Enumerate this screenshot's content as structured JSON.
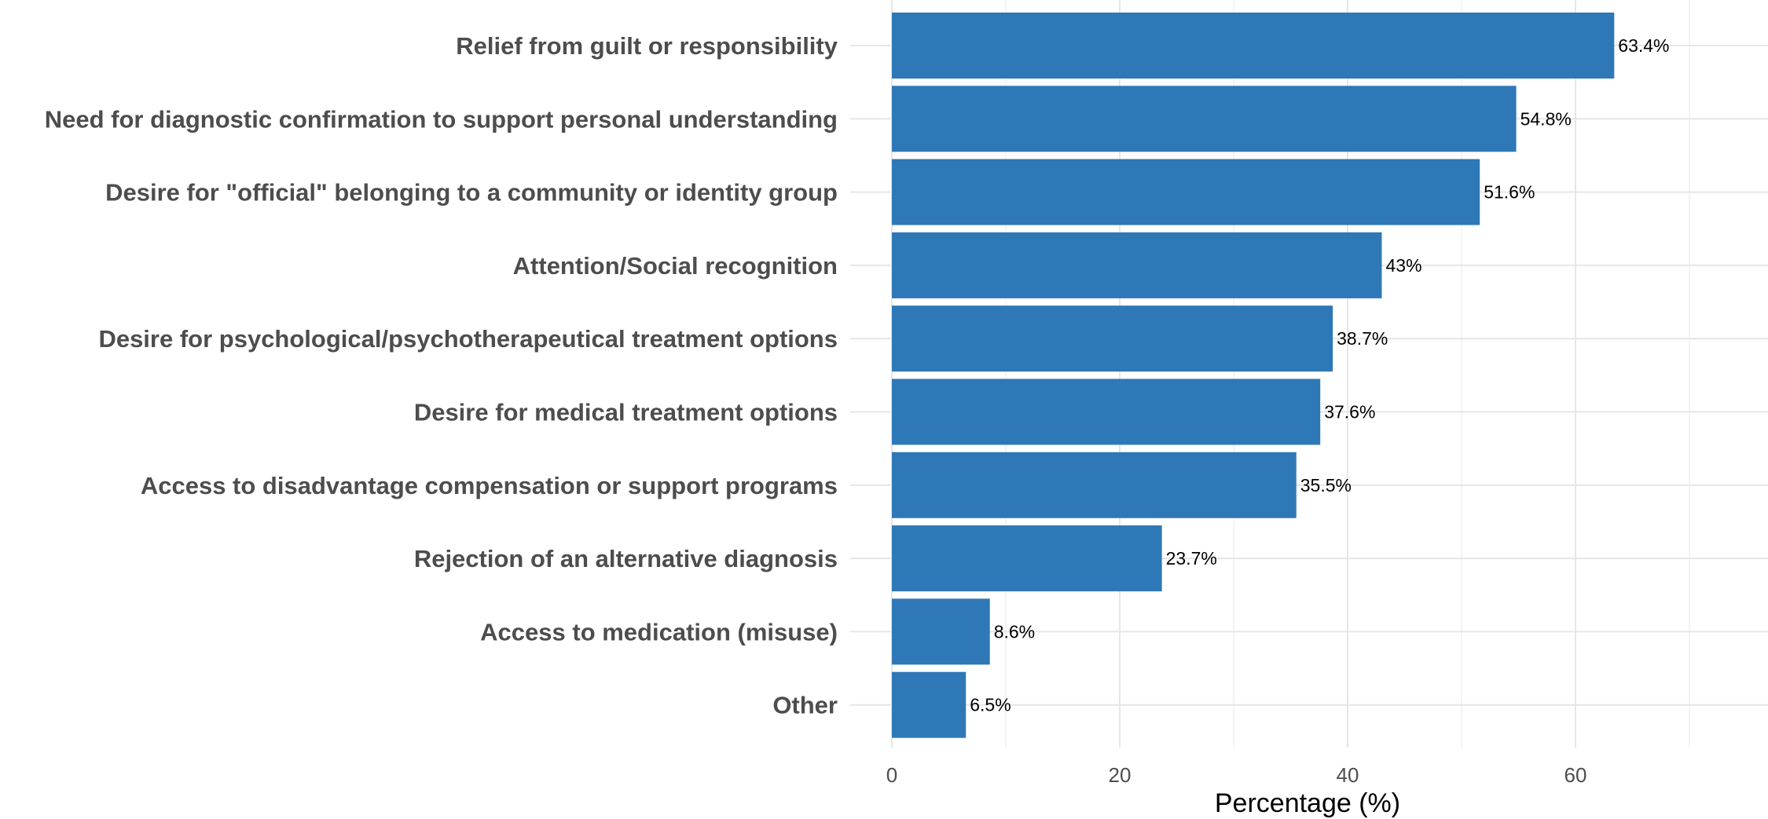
{
  "chart_data": {
    "type": "bar",
    "orientation": "horizontal",
    "title": "",
    "xlabel": "Percentage (%)",
    "ylabel": "",
    "xlim": [
      0,
      75
    ],
    "x_ticks": [
      0,
      20,
      40,
      60
    ],
    "grid": true,
    "bar_color": "#2e78b7",
    "categories": [
      "Relief from guilt or responsibility",
      "Need for diagnostic confirmation to support personal understanding",
      "Desire for \"official\" belonging to a community or identity group",
      "Attention/Social recognition",
      "Desire for psychological/psychotherapeutical treatment options",
      "Desire for medical treatment options",
      "Access to disadvantage compensation or support programs",
      "Rejection of an alternative diagnosis",
      "Access to medication (misuse)",
      "Other"
    ],
    "values": [
      63.4,
      54.8,
      51.6,
      43,
      38.7,
      37.6,
      35.5,
      23.7,
      8.6,
      6.5
    ],
    "data_labels": [
      "63.4%",
      "54.8%",
      "51.6%",
      "43%",
      "38.7%",
      "37.6%",
      "35.5%",
      "23.7%",
      "8.6%",
      "6.5%"
    ]
  }
}
